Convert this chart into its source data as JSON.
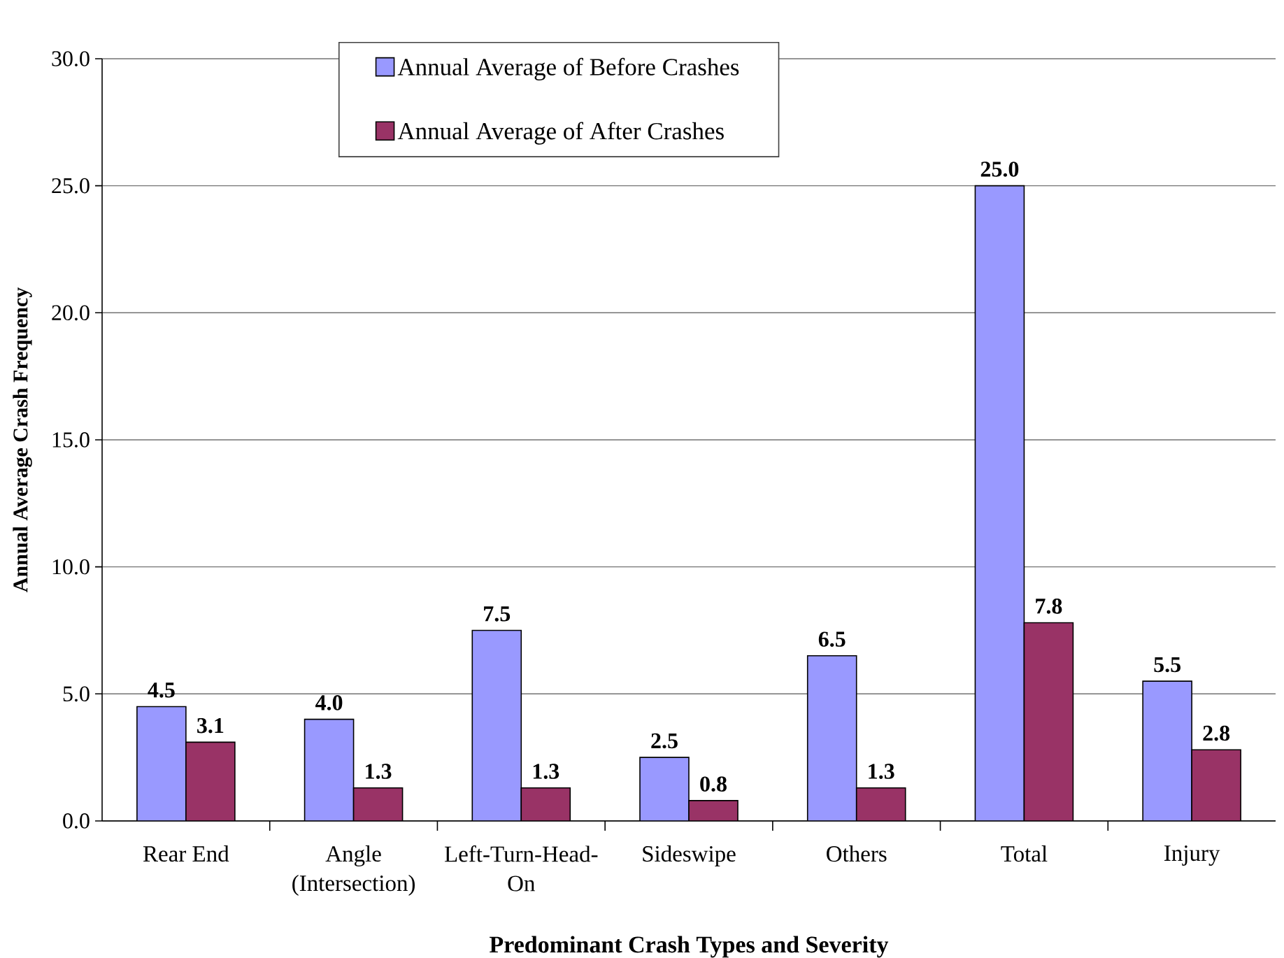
{
  "chart_data": {
    "type": "bar",
    "xlabel": "Predominant Crash Types and Severity",
    "ylabel": "Annual Average Crash Frequency",
    "categories": [
      "Rear End",
      "Angle (Intersection)",
      "Left-Turn-Head-On",
      "Sideswipe",
      "Others",
      "Total",
      "Injury"
    ],
    "series": [
      {
        "name": "Annual Average of Before Crashes",
        "color": "#9999ff",
        "values": [
          4.5,
          4.0,
          7.5,
          2.5,
          6.5,
          25.0,
          5.5
        ],
        "value_labels": [
          "4.5",
          "4.0",
          "7.5",
          "2.5",
          "6.5",
          "25.0",
          "5.5"
        ]
      },
      {
        "name": "Annual Average of After Crashes",
        "color": "#993366",
        "values": [
          3.1,
          1.3,
          1.3,
          0.8,
          1.3,
          7.8,
          2.8
        ],
        "value_labels": [
          "3.1",
          "1.3",
          "1.3",
          "0.8",
          "1.3",
          "7.8",
          "2.8"
        ]
      }
    ],
    "ylim": [
      0,
      30
    ],
    "yticks": [
      {
        "value": 0,
        "label": "0.0"
      },
      {
        "value": 5,
        "label": "5.0"
      },
      {
        "value": 10,
        "label": "10.0"
      },
      {
        "value": 15,
        "label": "15.0"
      },
      {
        "value": 20,
        "label": "20.0"
      },
      {
        "value": 25,
        "label": "25.0"
      },
      {
        "value": 30,
        "label": "30.0"
      }
    ],
    "grid": "y",
    "legend": "top"
  }
}
